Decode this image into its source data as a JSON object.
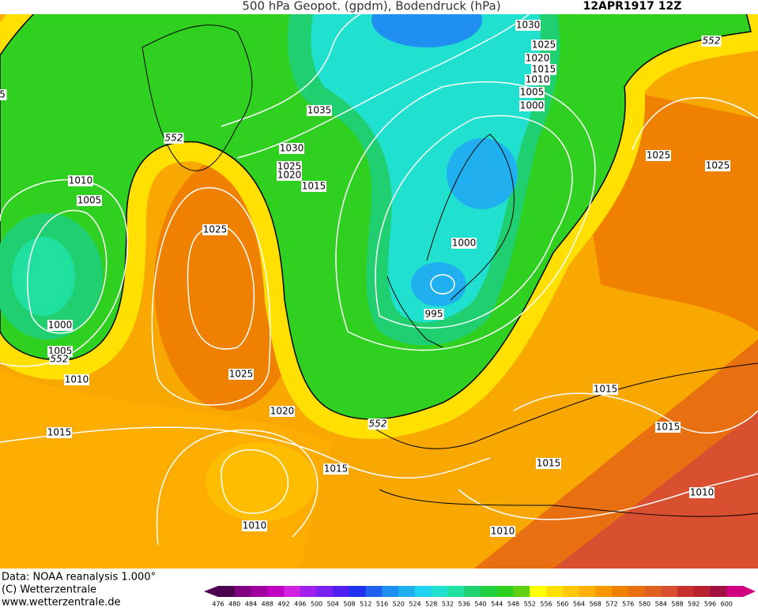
{
  "header": {
    "title": "500 hPa Geopot. (gpdm), Bodendruck (hPa)",
    "date": "12APR1917 12Z"
  },
  "map": {
    "isobar_labels": [
      "1030",
      "1025",
      "1020",
      "1015",
      "1010",
      "1005",
      "1000",
      "1035",
      "1030",
      "1025",
      "1020",
      "1015",
      "1010",
      "1005",
      "1000",
      "1005",
      "1010",
      "1025",
      "1025",
      "1020",
      "1015",
      "1015",
      "1010",
      "1000",
      "995",
      "1025",
      "1025",
      "1015",
      "1015",
      "1015",
      "1010",
      "1010",
      "5"
    ],
    "contour_labels": [
      "552",
      "552",
      "552",
      "552"
    ]
  },
  "footer": {
    "source": "Data: NOAA reanalysis 1.000°",
    "copyright": "(C) Wetterzentrale",
    "url": "www.wetterzentrale.de"
  },
  "colorbar": {
    "labels": [
      476,
      480,
      484,
      488,
      492,
      496,
      500,
      504,
      508,
      512,
      516,
      520,
      524,
      528,
      532,
      536,
      540,
      544,
      548,
      552,
      556,
      560,
      564,
      568,
      572,
      576,
      580,
      584,
      588,
      592,
      596,
      600
    ],
    "colors": [
      "#4b0050",
      "#800080",
      "#a000a0",
      "#c000c0",
      "#d020e0",
      "#a020f0",
      "#7a20f0",
      "#5020f0",
      "#2030f0",
      "#2060f0",
      "#2090f0",
      "#20b0f0",
      "#20d0f0",
      "#20e0d0",
      "#20e0a0",
      "#20d070",
      "#20d040",
      "#30d020",
      "#60d010",
      "#ffff00",
      "#ffe000",
      "#ffc800",
      "#ffb000",
      "#f89800",
      "#f08000",
      "#e87010",
      "#e06020",
      "#d85030",
      "#c83030",
      "#b82030",
      "#a01040",
      "#d00080"
    ]
  }
}
